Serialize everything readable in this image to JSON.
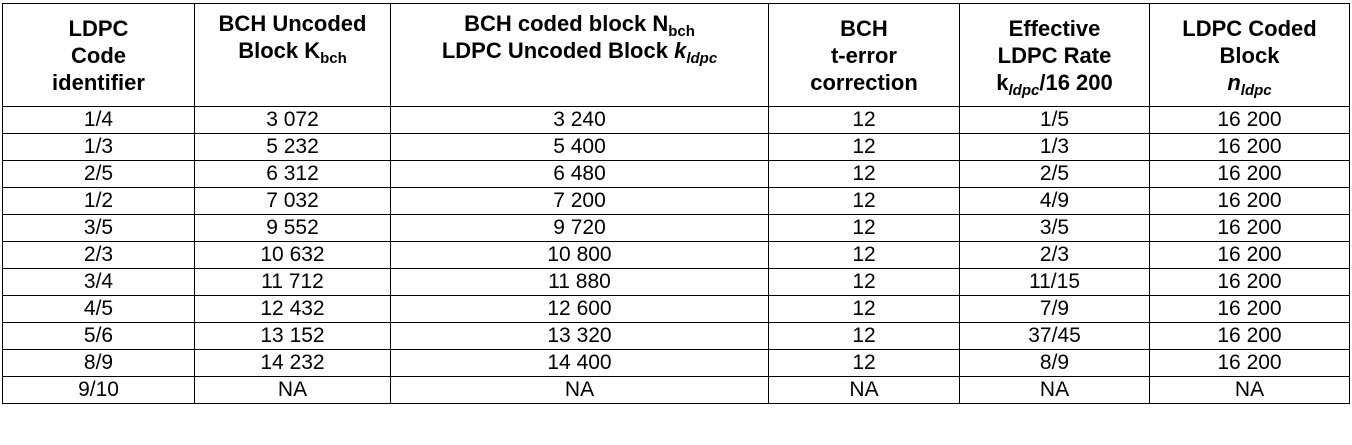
{
  "header": {
    "col1": [
      "LDPC",
      "Code",
      "identifier"
    ],
    "col2": {
      "line1": "BCH Uncoded",
      "line2_main": "Block K",
      "line2_sub": "bch"
    },
    "col3": {
      "line1_main": "BCH coded block N",
      "line1_sub": "bch",
      "line2_main": "LDPC Uncoded Block ",
      "line2_var": "k",
      "line2_sub": "ldpc"
    },
    "col4": [
      "BCH",
      "t-error",
      "correction"
    ],
    "col5": {
      "line1": "Effective",
      "line2": "LDPC Rate",
      "line3_main": "k",
      "line3_sub": "ldpc",
      "line3_rest": "/16 200"
    },
    "col6": {
      "line1": "LDPC Coded",
      "line2": "Block",
      "line3_var": "n",
      "line3_sub": "ldpc"
    }
  },
  "rows": [
    [
      "1/4",
      "3 072",
      "3 240",
      "12",
      "1/5",
      "16 200"
    ],
    [
      "1/3",
      "5 232",
      "5 400",
      "12",
      "1/3",
      "16 200"
    ],
    [
      "2/5",
      "6 312",
      "6 480",
      "12",
      "2/5",
      "16 200"
    ],
    [
      "1/2",
      "7 032",
      "7 200",
      "12",
      "4/9",
      "16 200"
    ],
    [
      "3/5",
      "9 552",
      "9 720",
      "12",
      "3/5",
      "16 200"
    ],
    [
      "2/3",
      "10 632",
      "10 800",
      "12",
      "2/3",
      "16 200"
    ],
    [
      "3/4",
      "11 712",
      "11 880",
      "12",
      "11/15",
      "16 200"
    ],
    [
      "4/5",
      "12 432",
      "12 600",
      "12",
      "7/9",
      "16 200"
    ],
    [
      "5/6",
      "13 152",
      "13 320",
      "12",
      "37/45",
      "16 200"
    ],
    [
      "8/9",
      "14 232",
      "14 400",
      "12",
      "8/9",
      "16 200"
    ],
    [
      "9/10",
      "NA",
      "NA",
      "NA",
      "NA",
      "NA"
    ]
  ]
}
